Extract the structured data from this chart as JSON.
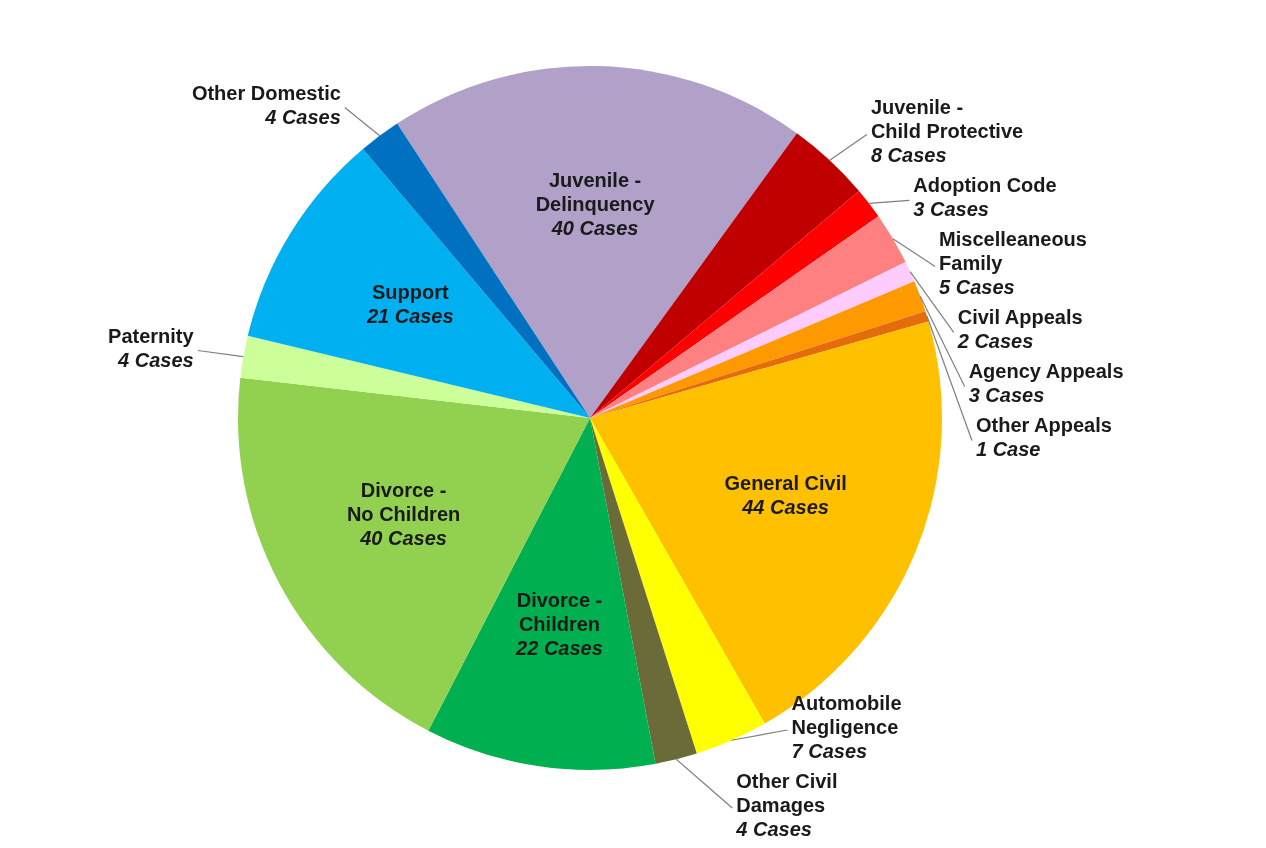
{
  "chart_data": {
    "type": "pie",
    "categories": [
      "Juvenile - Delinquency",
      "Juvenile - Child Protective",
      "Adoption Code",
      "Miscelleaneous Family",
      "Civil Appeals",
      "Agency Appeals",
      "Other Appeals",
      "General Civil",
      "Automobile Negligence",
      "Other Civil Damages",
      "Divorce - Children",
      "Divorce - No Children",
      "Paternity",
      "Support",
      "Other Domestic"
    ],
    "values": [
      40,
      8,
      3,
      5,
      2,
      3,
      1,
      44,
      7,
      4,
      22,
      40,
      4,
      21,
      4
    ],
    "value_labels": [
      "40 Cases",
      "8 Cases",
      "3 Cases",
      "5 Cases",
      "2 Cases",
      "3 Cases",
      "1 Case",
      "44 Cases",
      "7 Cases",
      "4 Cases",
      "22 Cases",
      "40 Cases",
      "4 Cases",
      "21 Cases",
      "4 Cases"
    ],
    "colors": [
      "#b1a0c7",
      "#c00000",
      "#ff0000",
      "#ff8080",
      "#ffccff",
      "#ff9900",
      "#e46c0a",
      "#ffc000",
      "#ffff00",
      "#6b6b3a",
      "#00b050",
      "#92d050",
      "#ccff99",
      "#00b0f0",
      "#0070c0"
    ]
  }
}
